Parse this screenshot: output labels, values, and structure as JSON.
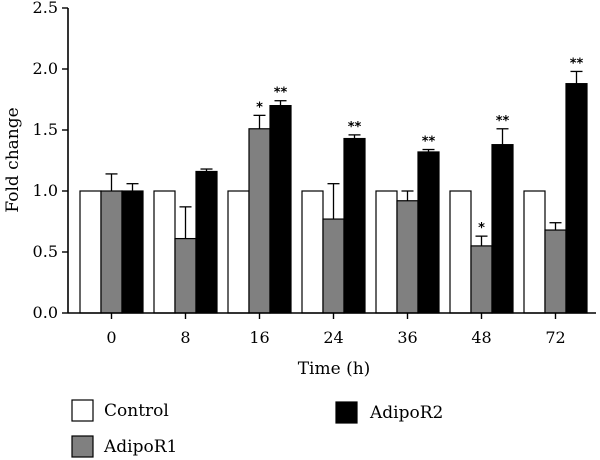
{
  "chart_data": {
    "type": "bar",
    "xlabel": "Time (h)",
    "ylabel": "Fold change",
    "ylim": [
      0,
      2.5
    ],
    "yticks": [
      "0.0",
      "0.5",
      "1.0",
      "1.5",
      "2.0",
      "2.5"
    ],
    "categories": [
      "0",
      "8",
      "16",
      "24",
      "36",
      "48",
      "72"
    ],
    "series": [
      {
        "name": "Control",
        "color": "#ffffff",
        "values": [
          1.0,
          1.0,
          1.0,
          1.0,
          1.0,
          1.0,
          1.0
        ],
        "errors": [
          0,
          0,
          0,
          0,
          0,
          0,
          0
        ],
        "significance": [
          "",
          "",
          "",
          "",
          "",
          "",
          ""
        ]
      },
      {
        "name": "AdipoR1",
        "color": "#808080",
        "values": [
          1.0,
          0.61,
          1.51,
          0.77,
          0.92,
          0.55,
          0.68
        ],
        "errors": [
          0.14,
          0.26,
          0.11,
          0.29,
          0.08,
          0.08,
          0.06
        ],
        "significance": [
          "",
          "",
          "*",
          "",
          "",
          "*",
          ""
        ]
      },
      {
        "name": "AdipoR2",
        "color": "#000000",
        "values": [
          1.0,
          1.16,
          1.7,
          1.43,
          1.32,
          1.38,
          1.88
        ],
        "errors": [
          0.06,
          0.02,
          0.04,
          0.03,
          0.02,
          0.13,
          0.1
        ],
        "significance": [
          "",
          "",
          "**",
          "**",
          "**",
          "**",
          "**"
        ]
      }
    ],
    "legend_position": "bottom"
  }
}
